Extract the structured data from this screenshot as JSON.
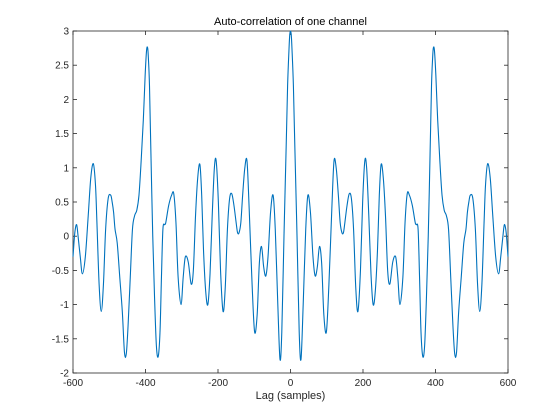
{
  "chart_data": {
    "type": "line",
    "title": "Auto-correlation of one channel",
    "xlabel": "Lag (samples)",
    "ylabel": "",
    "xlim": [
      -600,
      600
    ],
    "ylim": [
      -2,
      3
    ],
    "xticks": [
      -600,
      -400,
      -200,
      0,
      200,
      400,
      600
    ],
    "yticks": [
      -2,
      -1.5,
      -1,
      -0.5,
      0,
      0.5,
      1,
      1.5,
      2,
      2.5,
      3
    ],
    "grid": false,
    "line_color": "#0072bd",
    "series": [
      {
        "name": "",
        "x": [
          -600,
          -595,
          -590,
          -586,
          -580,
          -574,
          -566,
          -558,
          -551,
          -544,
          -538,
          -534,
          -528,
          -522,
          -516,
          -510,
          -503,
          -496,
          -492,
          -488,
          -484,
          -478,
          -471,
          -464,
          -458,
          -453,
          -448,
          -442,
          -436,
          -430,
          -424,
          -418,
          -412,
          -406,
          -401,
          -397,
          -394,
          -392,
          -389,
          -385,
          -380,
          -375,
          -370,
          -365,
          -360,
          -356,
          -352,
          -347,
          -344,
          -336,
          -328,
          -322,
          -316,
          -310,
          -302,
          -296,
          -290,
          -282,
          -274,
          -268,
          -262,
          -256,
          -250,
          -245,
          -240,
          -234,
          -228,
          -222,
          -216,
          -210,
          -205,
          -199,
          -193,
          -186,
          -180,
          -174,
          -168,
          -162,
          -156,
          -150,
          -146,
          -142,
          -137,
          -132,
          -126,
          -120,
          -114,
          -106,
          -99,
          -92,
          -86,
          -80,
          -74,
          -68,
          -62,
          -55,
          -48,
          -42,
          -35,
          -29,
          -24,
          -18,
          -12,
          -8,
          -4,
          -2,
          0,
          2,
          4,
          8,
          12,
          18,
          24,
          29,
          35,
          42,
          48,
          55,
          62,
          68,
          74,
          80,
          86,
          92,
          99,
          106,
          114,
          120,
          126,
          132,
          137,
          142,
          146,
          150,
          156,
          162,
          168,
          174,
          180,
          186,
          193,
          199,
          205,
          210,
          216,
          222,
          228,
          234,
          240,
          245,
          250,
          256,
          262,
          268,
          274,
          282,
          290,
          296,
          302,
          310,
          316,
          322,
          328,
          336,
          344,
          347,
          352,
          356,
          360,
          365,
          370,
          375,
          380,
          385,
          389,
          392,
          394,
          397,
          401,
          406,
          412,
          418,
          424,
          430,
          436,
          442,
          448,
          453,
          458,
          464,
          471,
          478,
          484,
          488,
          492,
          496,
          503,
          510,
          516,
          522,
          528,
          534,
          538,
          544,
          551,
          558,
          566,
          574,
          580,
          586,
          590,
          595,
          600
        ],
        "y": [
          -0.3,
          0.05,
          0.17,
          0.0,
          -0.3,
          -0.55,
          -0.3,
          0.3,
          0.85,
          1.06,
          0.75,
          0.2,
          -0.7,
          -1.1,
          -0.7,
          0.1,
          0.55,
          0.6,
          0.5,
          0.35,
          0.1,
          -0.1,
          -0.6,
          -1.1,
          -1.7,
          -1.72,
          -1.3,
          -0.6,
          0.1,
          0.3,
          0.38,
          0.6,
          1.1,
          1.7,
          2.35,
          2.72,
          2.75,
          2.6,
          2.2,
          1.2,
          0.0,
          -0.9,
          -1.6,
          -1.76,
          -1.4,
          -0.6,
          0.1,
          0.17,
          0.2,
          0.45,
          0.6,
          0.62,
          0.2,
          -0.6,
          -1.0,
          -0.6,
          -0.3,
          -0.38,
          -0.7,
          -0.5,
          0.3,
          0.85,
          1.05,
          0.6,
          -0.2,
          -0.8,
          -1.0,
          -0.55,
          0.3,
          1.0,
          1.1,
          0.5,
          -0.5,
          -1.1,
          -0.75,
          0.1,
          0.55,
          0.62,
          0.45,
          0.2,
          0.05,
          0.05,
          0.2,
          0.6,
          1.0,
          1.1,
          0.4,
          -0.7,
          -1.4,
          -1.15,
          -0.4,
          -0.15,
          -0.45,
          -0.58,
          -0.3,
          0.35,
          0.6,
          0.1,
          -1.0,
          -1.8,
          -1.4,
          0.0,
          1.3,
          2.2,
          2.75,
          2.95,
          3.0,
          2.95,
          2.75,
          2.2,
          1.3,
          0.0,
          -1.4,
          -1.8,
          -1.0,
          0.1,
          0.6,
          0.35,
          -0.3,
          -0.58,
          -0.45,
          -0.15,
          -0.4,
          -1.15,
          -1.4,
          -0.7,
          0.4,
          1.1,
          1.0,
          0.6,
          0.2,
          0.05,
          0.05,
          0.2,
          0.45,
          0.62,
          0.55,
          0.1,
          -0.75,
          -1.1,
          -0.5,
          0.5,
          1.1,
          1.0,
          0.3,
          -0.55,
          -1.0,
          -0.8,
          -0.2,
          0.6,
          1.05,
          0.85,
          0.3,
          -0.5,
          -0.7,
          -0.38,
          -0.3,
          -0.6,
          -1.0,
          -0.6,
          0.2,
          0.62,
          0.6,
          0.45,
          0.2,
          0.17,
          0.1,
          -0.6,
          -1.4,
          -1.76,
          -1.6,
          -0.9,
          0.0,
          1.2,
          2.2,
          2.6,
          2.75,
          2.72,
          2.35,
          1.7,
          1.1,
          0.6,
          0.38,
          0.3,
          0.1,
          -0.6,
          -1.3,
          -1.72,
          -1.7,
          -1.1,
          -0.6,
          -0.1,
          0.1,
          0.35,
          0.5,
          0.6,
          0.55,
          0.1,
          -0.7,
          -1.1,
          -0.7,
          0.2,
          0.75,
          1.06,
          0.85,
          0.3,
          -0.3,
          -0.55,
          -0.3,
          0.0,
          0.17,
          0.05,
          -0.3
        ]
      }
    ]
  }
}
